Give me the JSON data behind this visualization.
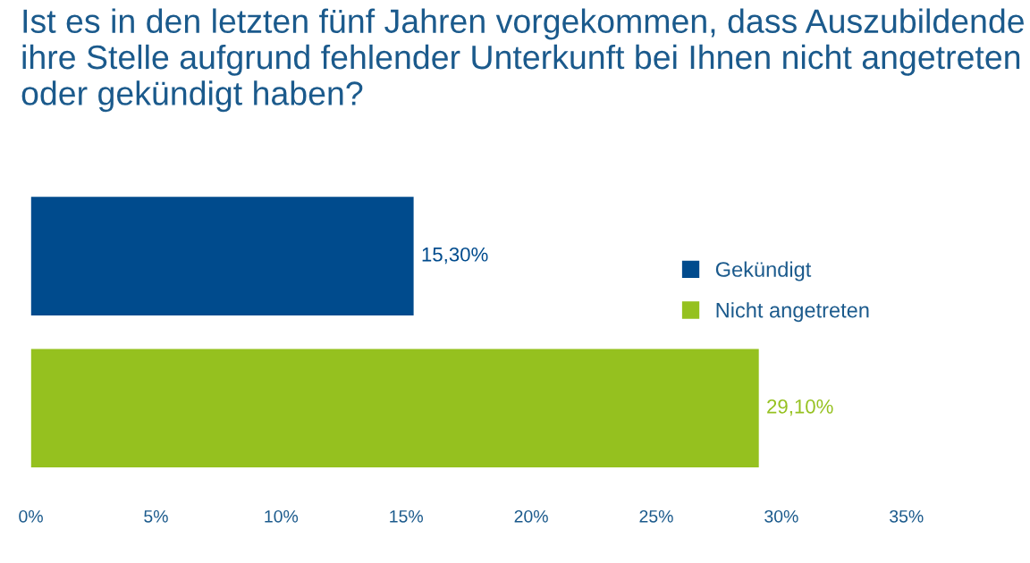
{
  "chart_data": {
    "type": "bar",
    "orientation": "horizontal",
    "title": "Ist es in den letzten fünf Jahren vorgekommen, dass Auszubildende ihre Stelle aufgrund fehlender Unterkunft bei Ihnen nicht angetreten oder gekündigt haben?",
    "categories": [
      null
    ],
    "series": [
      {
        "name": "Gekündigt",
        "color": "#004b8d",
        "values": [
          15.3
        ],
        "value_labels": [
          "15,30%"
        ]
      },
      {
        "name": "Nicht angetreten",
        "color": "#95c11f",
        "values": [
          29.1
        ],
        "value_labels": [
          "29,10%"
        ]
      }
    ],
    "xlim": [
      0,
      35
    ],
    "xticks": [
      {
        "value": 0,
        "label": "0%"
      },
      {
        "value": 5,
        "label": "5%"
      },
      {
        "value": 10,
        "label": "10%"
      },
      {
        "value": 15,
        "label": "15%"
      },
      {
        "value": 20,
        "label": "20%"
      },
      {
        "value": 25,
        "label": "25%"
      },
      {
        "value": 30,
        "label": "30%"
      },
      {
        "value": 35,
        "label": "35%"
      }
    ],
    "tick_labels": "x",
    "grid": false,
    "legend": "right"
  }
}
